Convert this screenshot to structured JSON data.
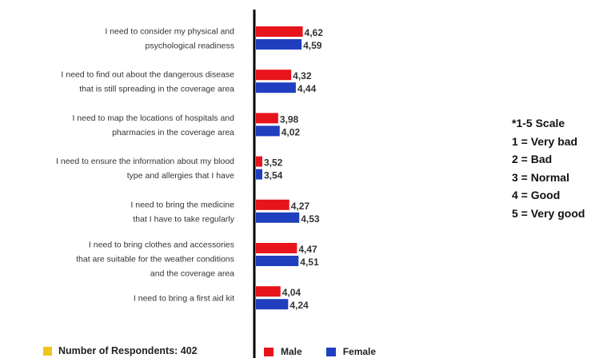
{
  "chart_data": {
    "type": "bar",
    "orientation": "horizontal",
    "categories": [
      [
        "I need to consider my physical and",
        "psychological readiness"
      ],
      [
        "I need to find out about the dangerous disease",
        "that is still spreading in the coverage area"
      ],
      [
        "I need to map the locations of hospitals and",
        "pharmacies in the coverage area"
      ],
      [
        "I need to ensure the information about my blood",
        "type and allergies that I have"
      ],
      [
        "I need to bring the medicine",
        "that I have to take regularly"
      ],
      [
        "I need to bring clothes and accessories",
        "that are suitable for the weather conditions",
        "and the coverage area"
      ],
      [
        "I need to bring a first aid kit"
      ]
    ],
    "series": [
      {
        "name": "Male",
        "color": "#e8141c",
        "values": [
          4.62,
          4.32,
          3.98,
          3.52,
          4.27,
          4.47,
          4.04
        ],
        "labels": [
          "4,62",
          "4,32",
          "3,98",
          "3,52",
          "4,27",
          "4,47",
          "4,04"
        ]
      },
      {
        "name": "Female",
        "color": "#1f3fbf",
        "values": [
          4.59,
          4.44,
          4.02,
          3.54,
          4.53,
          4.51,
          4.24
        ],
        "labels": [
          "4,59",
          "4,44",
          "4,02",
          "3,54",
          "4,53",
          "4,51",
          "4,24"
        ]
      }
    ],
    "xlim": [
      3.4,
      4.65
    ],
    "grid": false,
    "legend_position": "bottom"
  },
  "scale_note": [
    "*1-5 Scale",
    "1 = Very bad",
    "2 = Bad",
    "3 = Normal",
    "4 = Good",
    "5 = Very good"
  ],
  "respondents": {
    "label": "Number of Respondents: 402",
    "color": "#f2c31b"
  },
  "legend": {
    "male_label": "Male",
    "female_label": "Female"
  }
}
